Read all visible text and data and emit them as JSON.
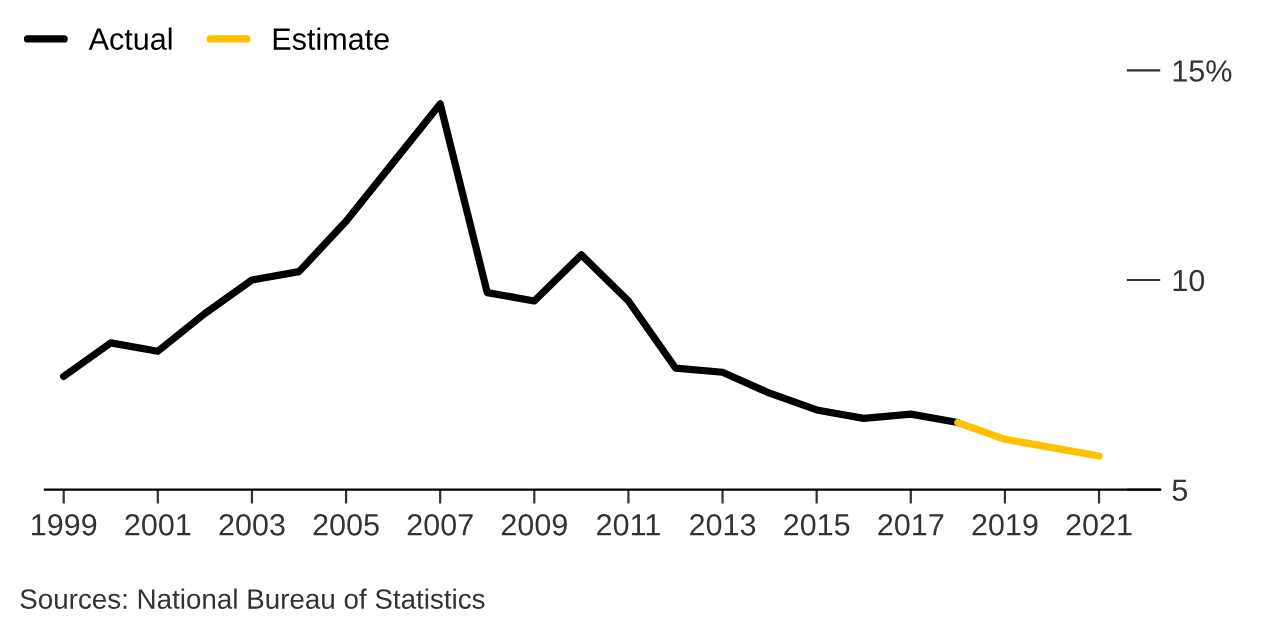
{
  "chart_data": {
    "type": "line",
    "x": [
      1999,
      2000,
      2001,
      2002,
      2003,
      2004,
      2005,
      2006,
      2007,
      2008,
      2009,
      2010,
      2011,
      2012,
      2013,
      2014,
      2015,
      2016,
      2017,
      2018,
      2019,
      2020,
      2021
    ],
    "series": [
      {
        "name": "Actual",
        "color": "#000000",
        "values": [
          7.7,
          8.5,
          8.3,
          9.2,
          10.0,
          10.2,
          11.4,
          12.8,
          14.2,
          9.7,
          9.5,
          10.6,
          9.5,
          7.9,
          7.8,
          7.3,
          6.9,
          6.7,
          6.8,
          6.6,
          null,
          null,
          null
        ]
      },
      {
        "name": "Estimate",
        "color": "#ffc000",
        "values": [
          null,
          null,
          null,
          null,
          null,
          null,
          null,
          null,
          null,
          null,
          null,
          null,
          null,
          null,
          null,
          null,
          null,
          null,
          null,
          6.6,
          6.2,
          6.0,
          5.8
        ]
      }
    ],
    "xlim": [
      1998.6,
      2022.3
    ],
    "ylim": [
      5,
      15
    ],
    "xticks": [
      1999,
      2001,
      2003,
      2005,
      2007,
      2009,
      2011,
      2013,
      2015,
      2017,
      2019,
      2021
    ],
    "yticks": [
      {
        "value": 5,
        "label": "5"
      },
      {
        "value": 10,
        "label": "10"
      },
      {
        "value": 15,
        "label": "15%"
      }
    ],
    "legend": "top left",
    "grid": false,
    "marker": "none",
    "line_style": "solid",
    "annotations": [
      "Sources: National Bureau of Statistics"
    ]
  }
}
